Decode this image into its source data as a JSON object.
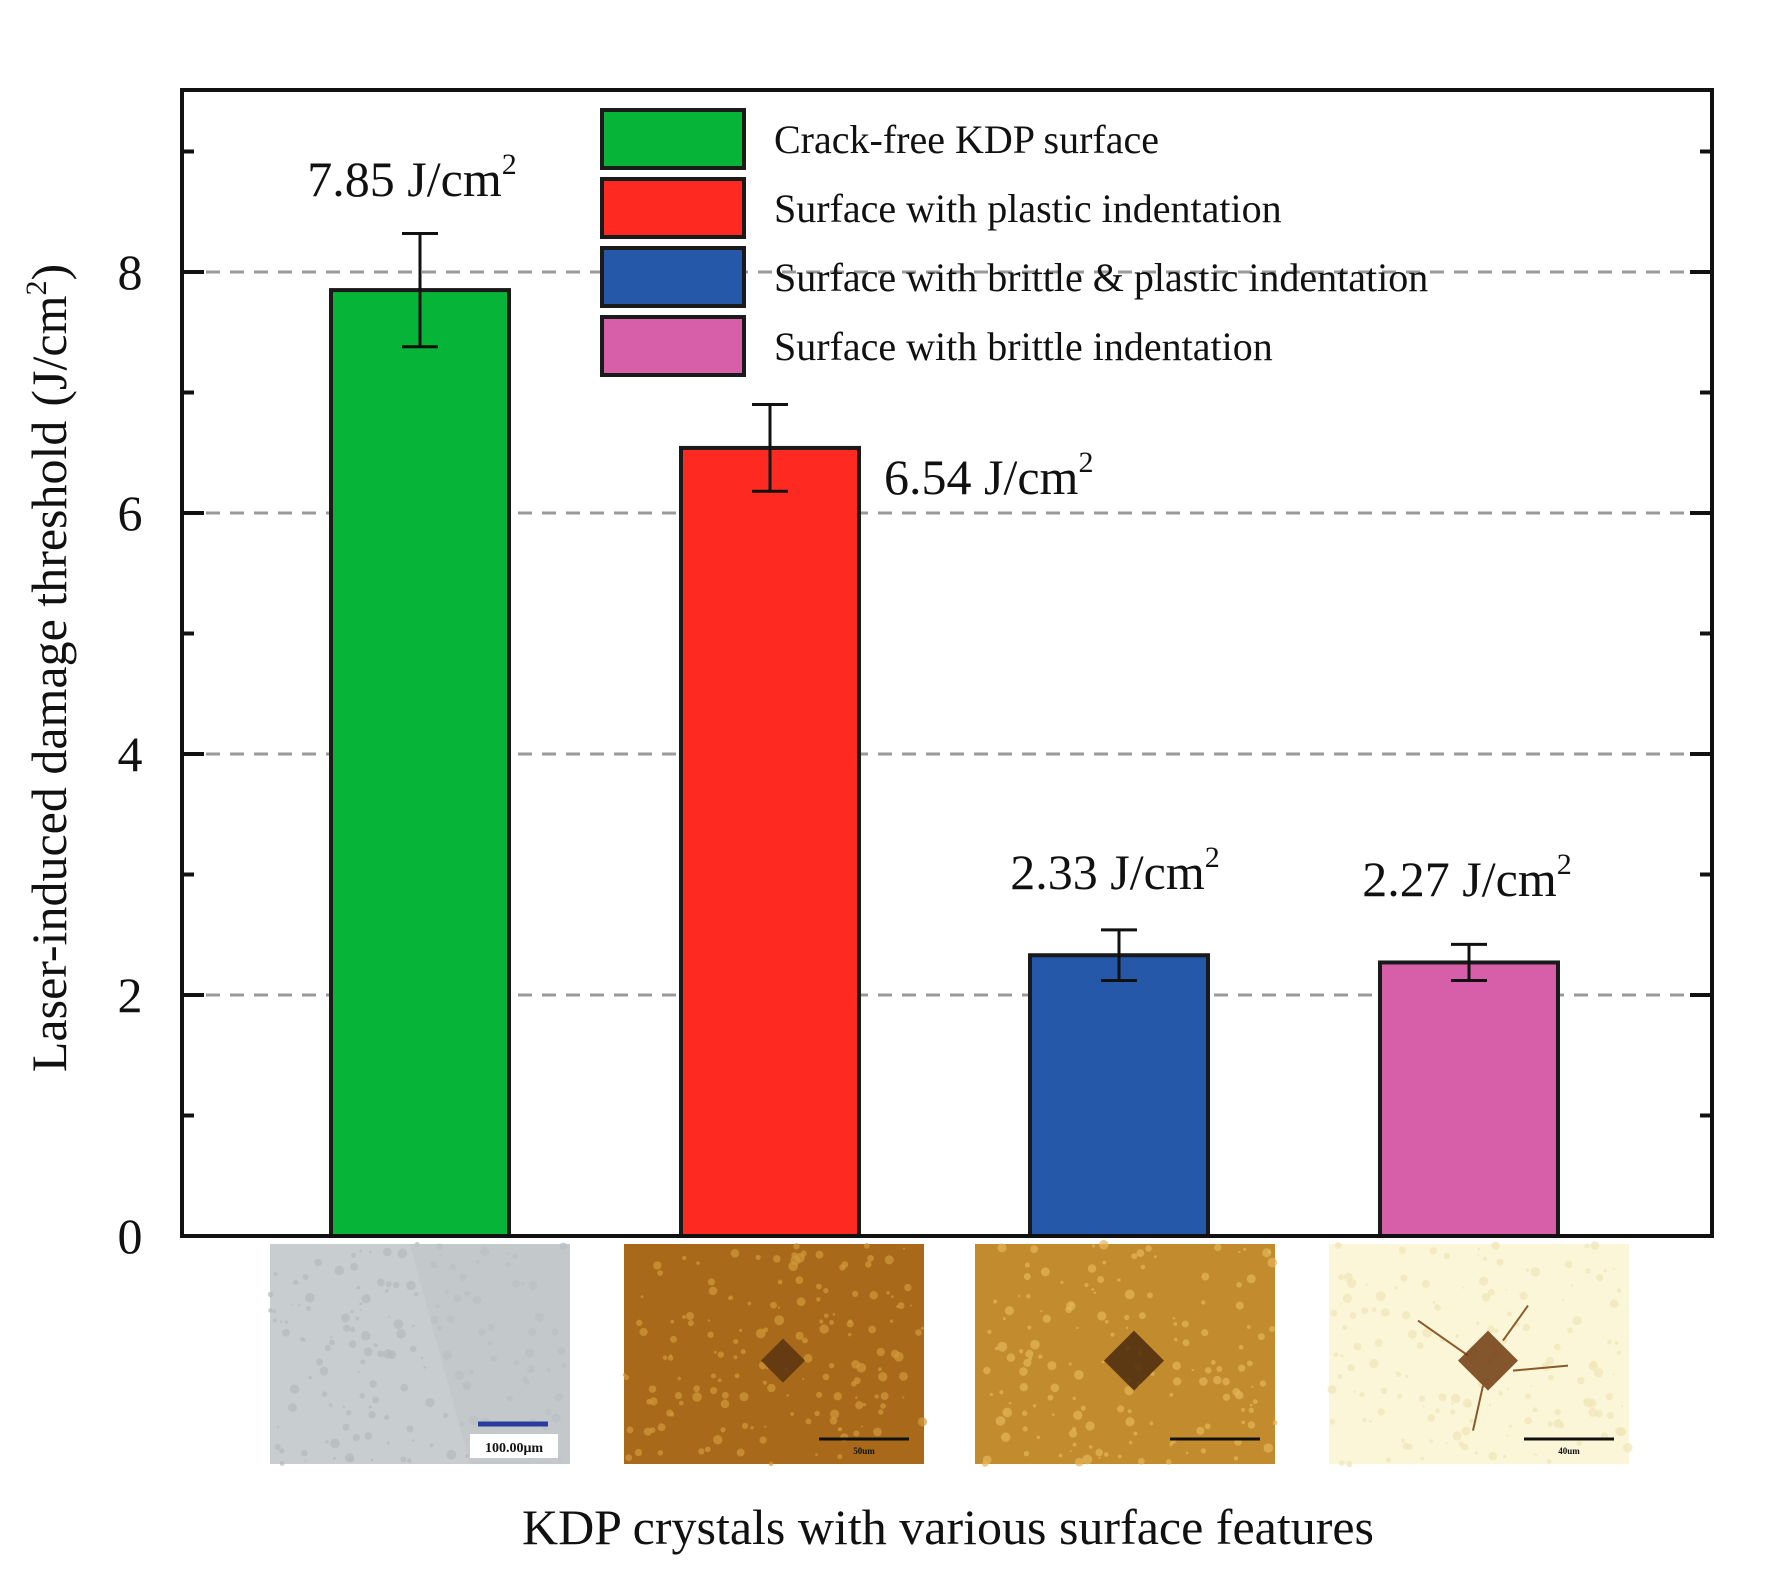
{
  "chart_data": {
    "type": "bar",
    "ylabel": "Laser-induced damage threshold",
    "ylabel_unit": "(J/cm",
    "ylabel_unit_sup": "2",
    "ylabel_unit_close": ")",
    "xlabel": "KDP crystals with various surface features",
    "ylim": [
      0,
      9.4
    ],
    "yticks_major": [
      0,
      2,
      4,
      6,
      8
    ],
    "yticks_minor": [
      1,
      3,
      5,
      7,
      9
    ],
    "gridlines": [
      2,
      4,
      6,
      8
    ],
    "grid": "dashed-horizontal",
    "legend_position": "top-right",
    "series": [
      {
        "name": "Crack-free KDP surface",
        "value": 7.85,
        "error": 0.47,
        "color": "#06b437",
        "value_label": "7.85 J/cm",
        "value_label_sup": "2",
        "label_placement": "above-left"
      },
      {
        "name": "Surface with plastic indentation",
        "value": 6.54,
        "error": 0.36,
        "color": "#fe2a22",
        "value_label": "6.54 J/cm",
        "value_label_sup": "2",
        "label_placement": "right"
      },
      {
        "name": "Surface with brittle & plastic indentation",
        "value": 2.33,
        "error": 0.21,
        "color": "#2558a8",
        "value_label": "2.33 J/cm",
        "value_label_sup": "2",
        "label_placement": "above"
      },
      {
        "name": "Surface with brittle indentation",
        "value": 2.27,
        "error": 0.15,
        "color": "#d75ea8",
        "value_label": "2.27 J/cm",
        "value_label_sup": "2",
        "label_placement": "above"
      }
    ],
    "micrographs": [
      {
        "background": "#c8cdcf",
        "texture": "#b4babc",
        "scale_bar_label": "100.00μm",
        "scale_bar_color": "#2a3c9c",
        "indent": false
      },
      {
        "background": "#a86a1a",
        "texture": "#d19a3a",
        "scale_bar_label": "50um",
        "scale_bar_color": "#111111",
        "indent": true,
        "indent_color": "#5a3212",
        "crack": false
      },
      {
        "background": "#c28b2e",
        "texture": "#e2b658",
        "scale_bar_label": "",
        "scale_bar_color": "#111111",
        "indent": true,
        "indent_color": "#4a2a0e",
        "crack": false
      },
      {
        "background": "#fbf6d8",
        "texture": "#efe6b8",
        "scale_bar_label": "40um",
        "scale_bar_color": "#111111",
        "indent": true,
        "indent_color": "#6e3a10",
        "crack": true
      }
    ]
  }
}
